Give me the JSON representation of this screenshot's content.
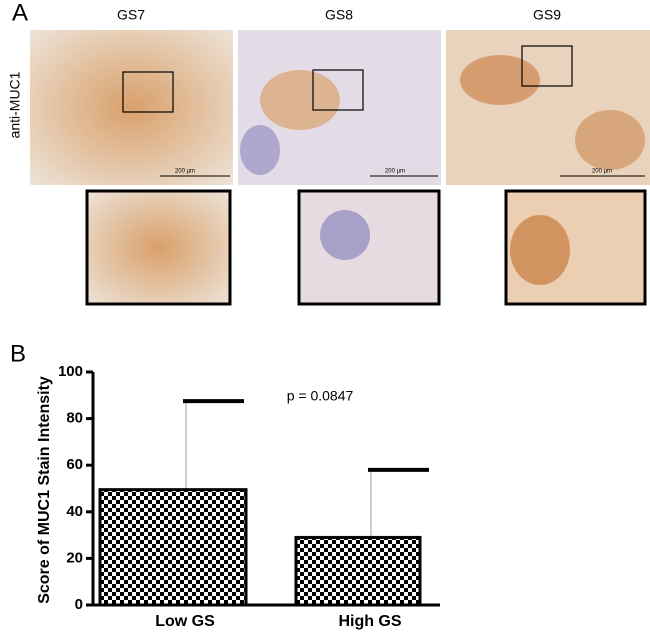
{
  "panel_a": {
    "label": "A",
    "columns": [
      "GS7",
      "GS8",
      "GS9"
    ],
    "row_label": "anti-MUC1",
    "scale_bar": "200 µm"
  },
  "chart_data": {
    "type": "bar",
    "label": "B",
    "ylabel": "Score of MUC1 Stain  Intensity",
    "categories": [
      "Low GS",
      "High GS"
    ],
    "values": [
      49.5,
      29
    ],
    "errors": [
      38,
      29
    ],
    "color": "#000000",
    "annotation": "p = 0.0847",
    "ylim": [
      0,
      100
    ],
    "yticks": [
      0,
      20,
      40,
      60,
      80,
      100
    ],
    "grid": false
  }
}
